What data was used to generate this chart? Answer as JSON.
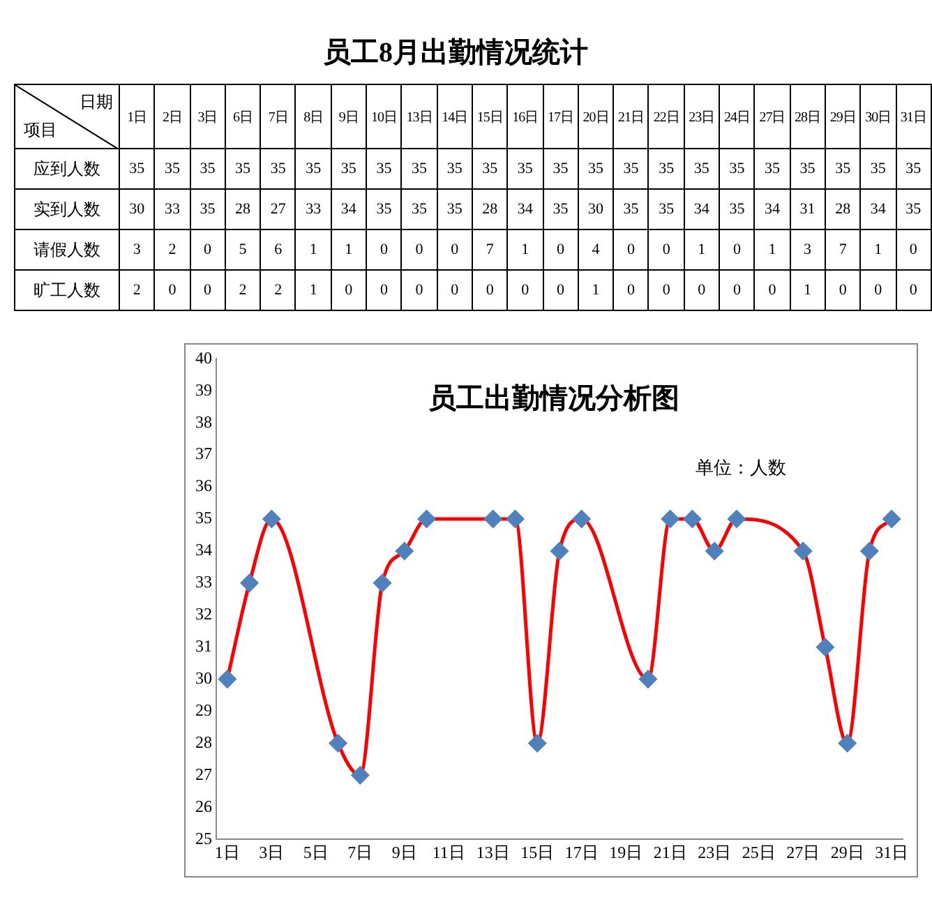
{
  "chart_data": [
    {
      "type": "heatmap",
      "title": "员工8月出勤情况统计",
      "xlabel": "日期",
      "ylabel": "项目",
      "data_labels": true,
      "categories": [
        "1日",
        "2日",
        "3日",
        "6日",
        "7日",
        "8日",
        "9日",
        "10日",
        "13日",
        "14日",
        "15日",
        "16日",
        "17日",
        "20日",
        "21日",
        "22日",
        "23日",
        "24日",
        "27日",
        "28日",
        "29日",
        "30日",
        "31日"
      ],
      "y_categories": [
        "应到人数",
        "实到人数",
        "请假人数",
        "旷工人数"
      ],
      "cells": [
        [
          35,
          35,
          35,
          35,
          35,
          35,
          35,
          35,
          35,
          35,
          35,
          35,
          35,
          35,
          35,
          35,
          35,
          35,
          35,
          35,
          35,
          35,
          35
        ],
        [
          30,
          33,
          35,
          28,
          27,
          33,
          34,
          35,
          35,
          35,
          28,
          34,
          35,
          30,
          35,
          35,
          34,
          35,
          34,
          31,
          28,
          34,
          35
        ],
        [
          3,
          2,
          0,
          5,
          6,
          1,
          1,
          0,
          0,
          0,
          7,
          1,
          0,
          4,
          0,
          0,
          1,
          0,
          1,
          3,
          7,
          1,
          0
        ],
        [
          2,
          0,
          0,
          2,
          2,
          1,
          0,
          0,
          0,
          0,
          0,
          0,
          0,
          1,
          0,
          0,
          0,
          0,
          0,
          1,
          0,
          0,
          0
        ]
      ]
    },
    {
      "type": "line",
      "title": "员工出勤情况分析图",
      "annotations": [
        "单位：人数"
      ],
      "marker": "diamond",
      "legend": false,
      "grid": false,
      "x": [
        1,
        2,
        3,
        6,
        7,
        8,
        9,
        10,
        13,
        14,
        15,
        16,
        17,
        20,
        21,
        22,
        23,
        24,
        27,
        28,
        29,
        30,
        31
      ],
      "series": [
        {
          "color": "#ff0000",
          "values": [
            30,
            33,
            35,
            28,
            27,
            33,
            34,
            35,
            35,
            35,
            28,
            34,
            35,
            30,
            35,
            35,
            34,
            35,
            34,
            31,
            28,
            34,
            35
          ]
        }
      ],
      "xlim": [
        0.5,
        31.5
      ],
      "xticks": [
        {
          "value": 1,
          "label": "1日"
        },
        {
          "value": 3,
          "label": "3日"
        },
        {
          "value": 5,
          "label": "5日"
        },
        {
          "value": 7,
          "label": "7日"
        },
        {
          "value": 9,
          "label": "9日"
        },
        {
          "value": 11,
          "label": "11日"
        },
        {
          "value": 13,
          "label": "13日"
        },
        {
          "value": 15,
          "label": "15日"
        },
        {
          "value": 17,
          "label": "17日"
        },
        {
          "value": 19,
          "label": "19日"
        },
        {
          "value": 21,
          "label": "21日"
        },
        {
          "value": 23,
          "label": "23日"
        },
        {
          "value": 25,
          "label": "25日"
        },
        {
          "value": 27,
          "label": "27日"
        },
        {
          "value": 29,
          "label": "29日"
        },
        {
          "value": 31,
          "label": "31日"
        }
      ],
      "ylim": [
        25,
        40
      ],
      "yticks": [
        25,
        26,
        27,
        28,
        29,
        30,
        31,
        32,
        33,
        34,
        35,
        36,
        37,
        38,
        39,
        40
      ]
    }
  ]
}
